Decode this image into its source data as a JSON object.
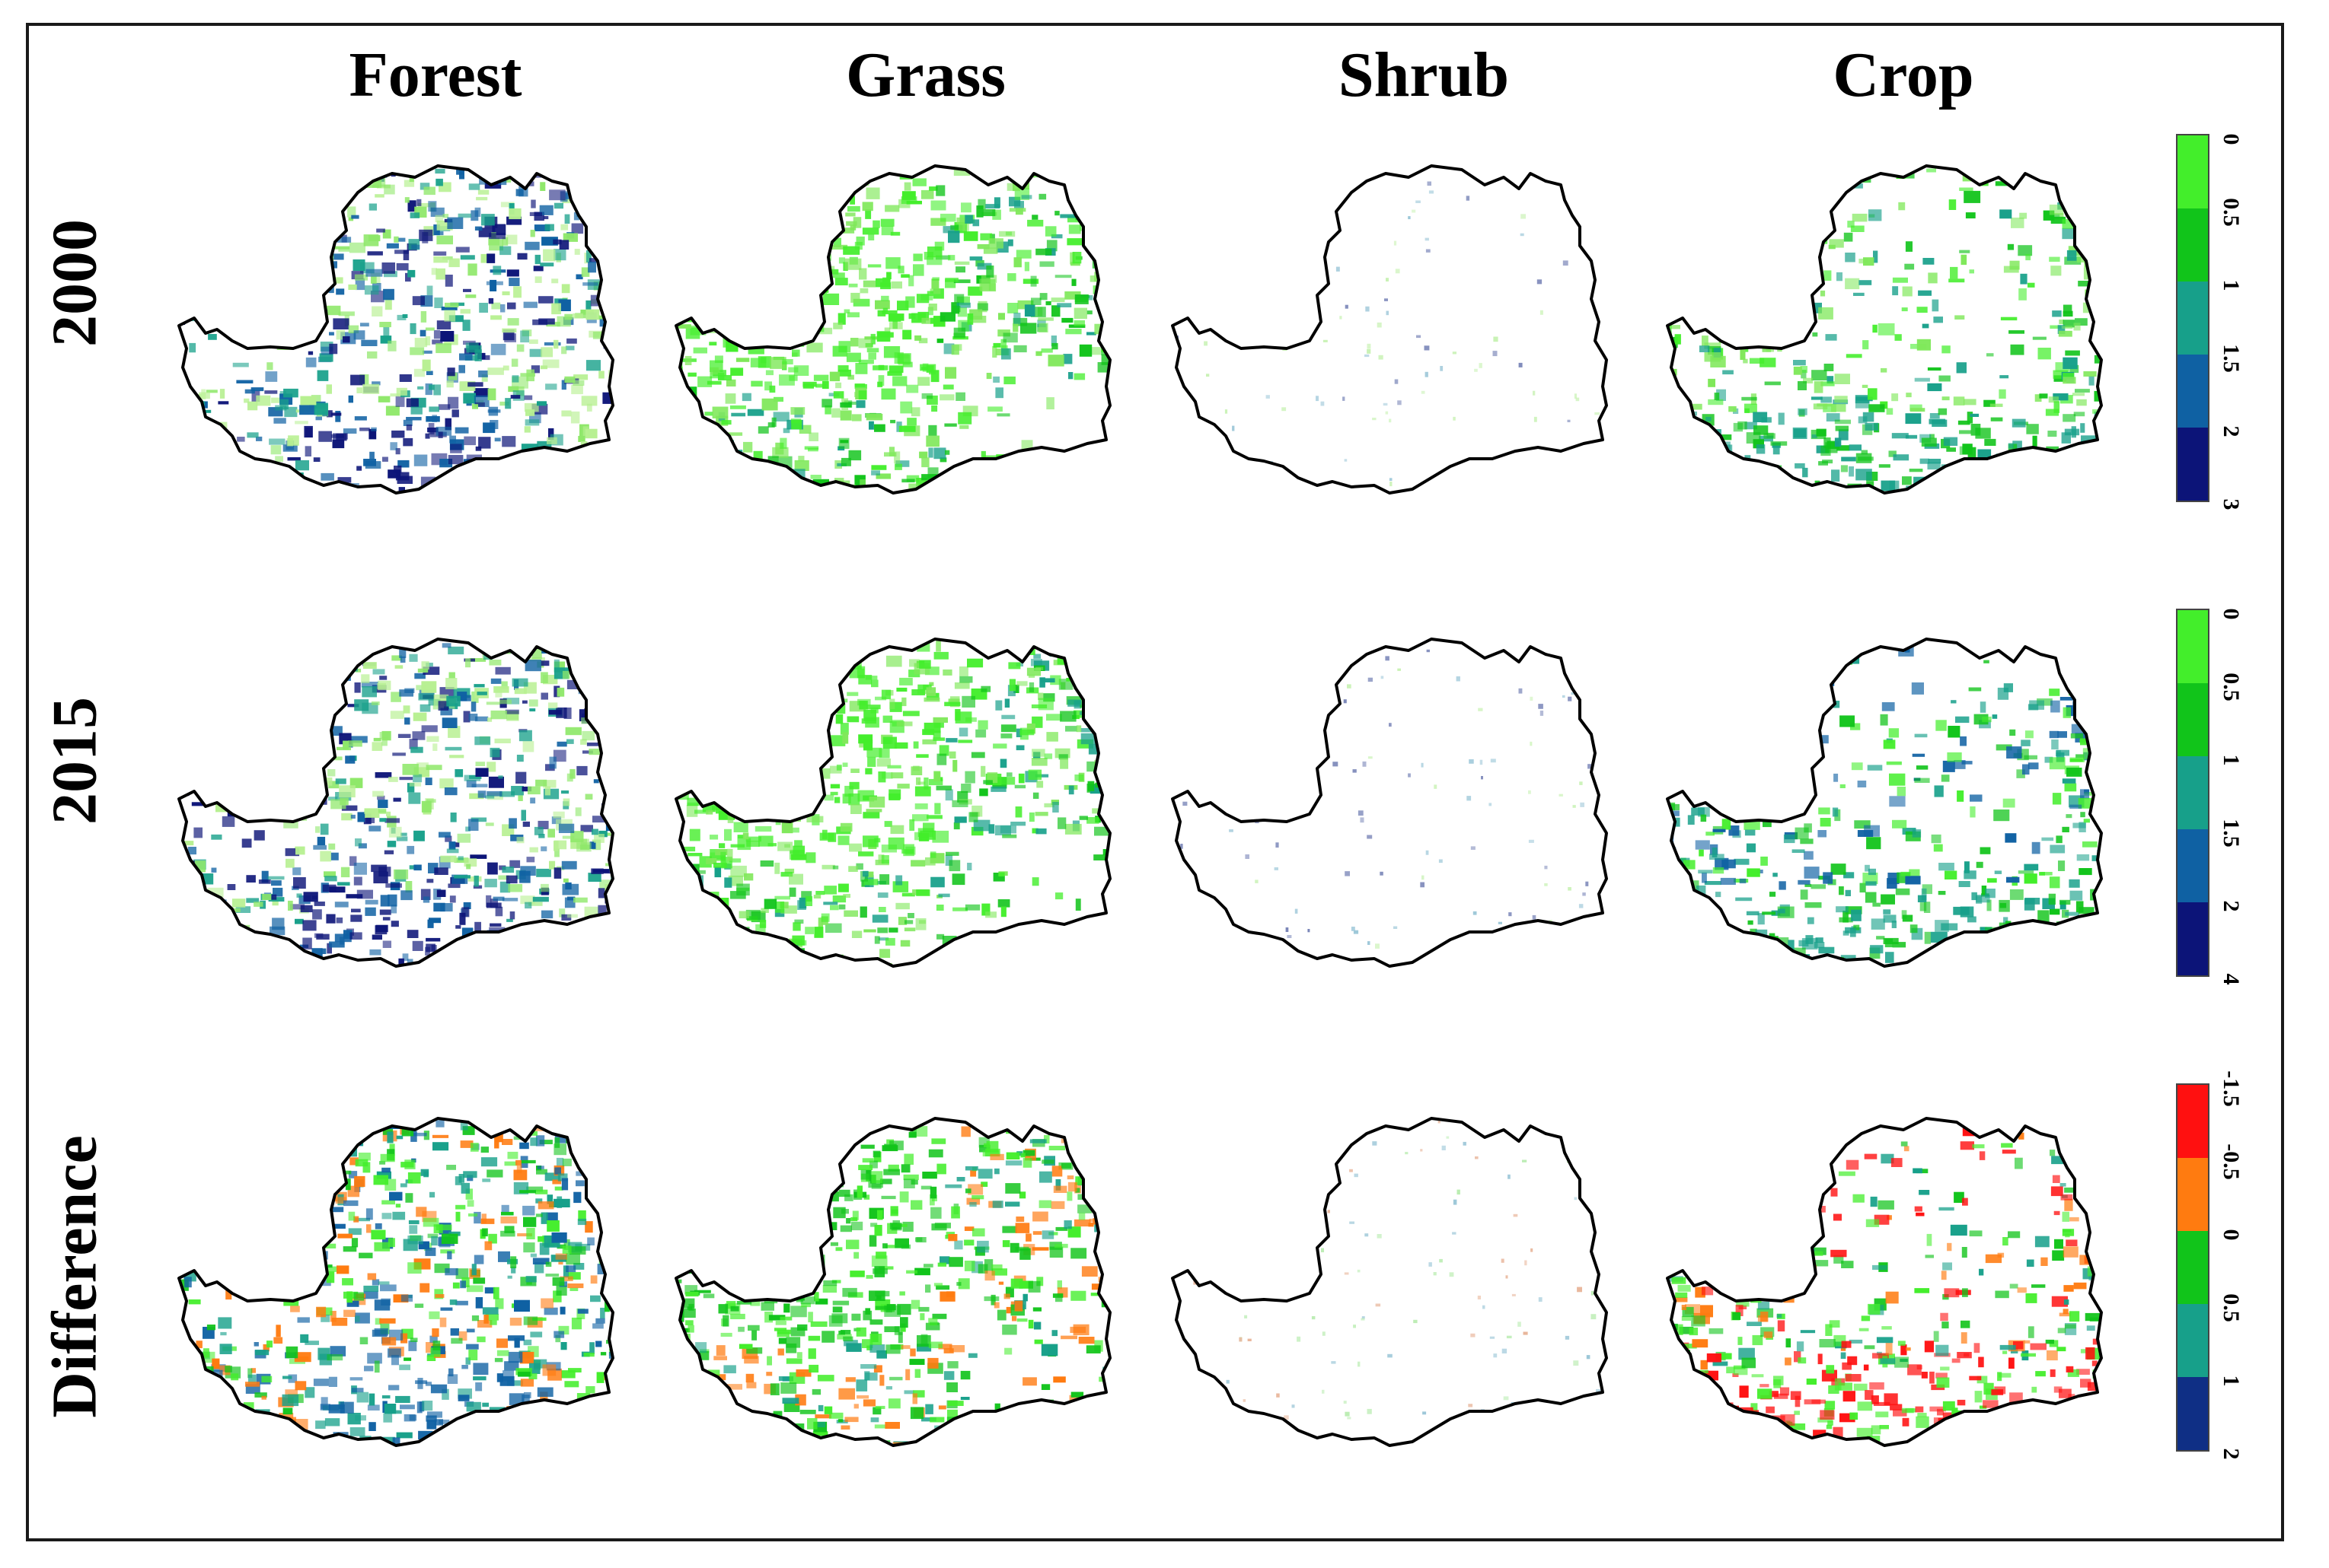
{
  "figure": {
    "columns": [
      "Forest",
      "Grass",
      "Shrub",
      "Crop"
    ],
    "rows": [
      "2000",
      "2015",
      "Difference"
    ]
  },
  "legends": [
    {
      "row": "2000",
      "labels": [
        "0",
        "0.5",
        "1",
        "1.5",
        "2",
        "3"
      ],
      "colors": [
        "#43ee2b",
        "#11c41a",
        "#17a08a",
        "#0f61a3",
        "#0c1478"
      ]
    },
    {
      "row": "2015",
      "labels": [
        "0",
        "0.5",
        "1",
        "1.5",
        "2",
        "4"
      ],
      "colors": [
        "#43ee2b",
        "#11c41a",
        "#17a08a",
        "#0f61a3",
        "#0c1478"
      ]
    },
    {
      "row": "Difference",
      "labels": [
        "-1.5",
        "-0.5",
        "0",
        "0.5",
        "1",
        "2"
      ],
      "colors": [
        "#ff1010",
        "#ff7b10",
        "#11c41a",
        "#17a08a",
        "#0f2f85"
      ]
    }
  ],
  "map_style": {
    "outline_color": "#000000",
    "background": "#ffffff"
  },
  "panels": [
    {
      "row": "2000",
      "column": "Forest",
      "palette": [
        "#8fe86a",
        "#b7f091",
        "#0f61a3",
        "#0c1478",
        "#17a08a"
      ]
    },
    {
      "row": "2000",
      "column": "Grass",
      "palette": [
        "#43ee2b",
        "#7fe85a",
        "#11c41a",
        "#17a08a"
      ]
    },
    {
      "row": "2000",
      "column": "Shrub",
      "palette": [
        "#c9f2b5",
        "#9cc7d8",
        "#7a86b8"
      ]
    },
    {
      "row": "2000",
      "column": "Crop",
      "palette": [
        "#43ee2b",
        "#11c41a",
        "#17a08a",
        "#7fe85a"
      ]
    },
    {
      "row": "2015",
      "column": "Forest",
      "palette": [
        "#8fe86a",
        "#b7f091",
        "#0f61a3",
        "#0c1478",
        "#17a08a"
      ]
    },
    {
      "row": "2015",
      "column": "Grass",
      "palette": [
        "#43ee2b",
        "#7fe85a",
        "#11c41a",
        "#17a08a"
      ]
    },
    {
      "row": "2015",
      "column": "Shrub",
      "palette": [
        "#c9f2b5",
        "#9cc7d8",
        "#7a86b8"
      ]
    },
    {
      "row": "2015",
      "column": "Crop",
      "palette": [
        "#43ee2b",
        "#11c41a",
        "#17a08a",
        "#0f61a3"
      ]
    },
    {
      "row": "Difference",
      "column": "Forest",
      "palette": [
        "#11c41a",
        "#43ee2b",
        "#17a08a",
        "#0f61a3",
        "#ff7b10"
      ]
    },
    {
      "row": "Difference",
      "column": "Grass",
      "palette": [
        "#11c41a",
        "#43ee2b",
        "#ff7b10",
        "#17a08a"
      ]
    },
    {
      "row": "Difference",
      "column": "Shrub",
      "palette": [
        "#b9ecb0",
        "#9cc7d8",
        "#e8b59a"
      ]
    },
    {
      "row": "Difference",
      "column": "Crop",
      "palette": [
        "#11c41a",
        "#43ee2b",
        "#ff1010",
        "#ff7b10",
        "#17a08a"
      ]
    }
  ]
}
